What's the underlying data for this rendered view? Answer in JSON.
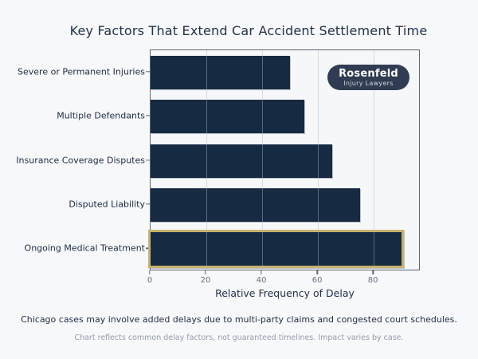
{
  "title": "Key Factors That Extend Car Accident Settlement Time",
  "chart_data": {
    "type": "bar",
    "orientation": "horizontal",
    "categories": [
      "Severe or Permanent Injuries",
      "Multiple Defendants",
      "Insurance Coverage Disputes",
      "Disputed Liability",
      "Ongoing Medical Treatment"
    ],
    "values": [
      50,
      55,
      65,
      75,
      90
    ],
    "highlighted_category": "Ongoing Medical Treatment",
    "highlighted_index": 4,
    "xlabel": "Relative Frequency of Delay",
    "ylabel": "",
    "xlim": [
      0,
      96
    ],
    "xticks": [
      0,
      20,
      40,
      60,
      80
    ],
    "grid": "vertical",
    "legend": "none",
    "bar_color": "#162a42",
    "highlight_border_color": "#c9b270"
  },
  "logo": {
    "name": "Rosenfeld",
    "tagline": "Injury Lawyers"
  },
  "footnote_primary": "Chicago cases may involve added delays due to multi-party claims and congested court schedules.",
  "footnote_secondary": "Chart reflects common delay factors, not guaranteed timelines. Impact varies by case.",
  "colors": {
    "figure_background": "#f7f8fa",
    "plot_background": "#f5f7f9",
    "plot_border": "#5d6670",
    "title_text": "#233249",
    "tick_label_text": "#68707d",
    "footnote_secondary_text": "#949daa",
    "logo_background": "#2f3c52"
  }
}
